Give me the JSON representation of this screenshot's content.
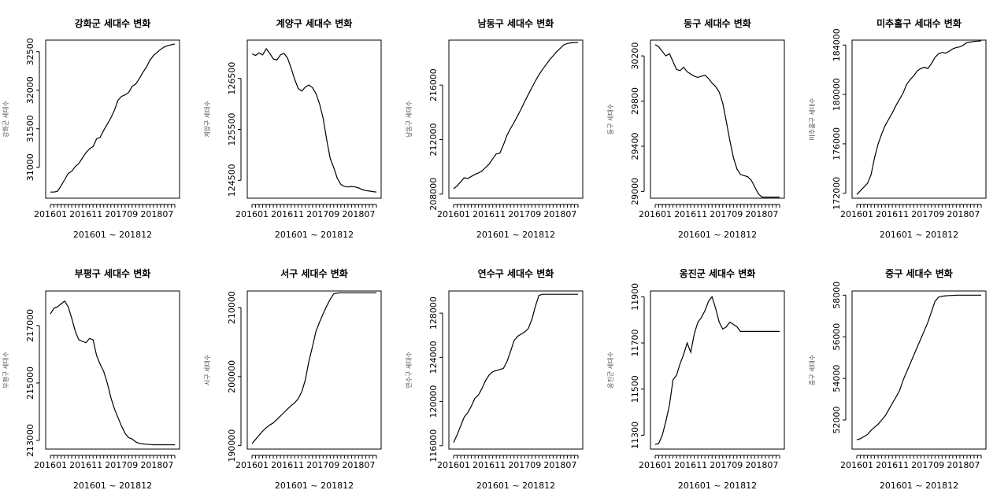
{
  "chart_data": [
    {
      "type": "line",
      "title": "강화군 세대수 변화",
      "xlabel": "201601 ~ 201812",
      "ylabel": "강화군 세대수",
      "ylim": [
        30600,
        32650
      ],
      "yticks": [
        31000,
        31500,
        32000,
        32500
      ],
      "xtick_labels": [
        {
          "index": 0,
          "label": "201601"
        },
        {
          "index": 10,
          "label": "201611"
        },
        {
          "index": 20,
          "label": "201709"
        },
        {
          "index": 30,
          "label": "201807"
        }
      ],
      "x_count": 36,
      "values": [
        30680,
        30680,
        30690,
        30760,
        30840,
        30920,
        30950,
        31010,
        31050,
        31120,
        31190,
        31240,
        31270,
        31370,
        31390,
        31480,
        31560,
        31640,
        31740,
        31870,
        31920,
        31940,
        31970,
        32050,
        32080,
        32150,
        32230,
        32300,
        32390,
        32450,
        32490,
        32530,
        32560,
        32580,
        32590,
        32600
      ]
    },
    {
      "type": "line",
      "title": "계양구 세대수 변화",
      "xlabel": "201601 ~ 201812",
      "ylabel": "계양구 세대수",
      "ylim": [
        124150,
        127250
      ],
      "yticks": [
        124500,
        125500,
        126500
      ],
      "xtick_labels": [
        {
          "index": 0,
          "label": "201601"
        },
        {
          "index": 10,
          "label": "201611"
        },
        {
          "index": 20,
          "label": "201709"
        },
        {
          "index": 30,
          "label": "201807"
        }
      ],
      "x_count": 36,
      "values": [
        126980,
        126950,
        127000,
        126960,
        127080,
        126990,
        126880,
        126860,
        126960,
        126990,
        126900,
        126700,
        126480,
        126300,
        126250,
        126330,
        126370,
        126320,
        126200,
        126000,
        125720,
        125300,
        124930,
        124750,
        124540,
        124420,
        124380,
        124370,
        124380,
        124370,
        124350,
        124320,
        124300,
        124290,
        124280,
        124270
      ]
    },
    {
      "type": "line",
      "title": "남동구 세대수 변화",
      "xlabel": "201601 ~ 201812",
      "ylabel": "남동구 세대수",
      "ylim": [
        207700,
        219300
      ],
      "yticks": [
        208000,
        212000,
        216000
      ],
      "xtick_labels": [
        {
          "index": 0,
          "label": "201601"
        },
        {
          "index": 10,
          "label": "201611"
        },
        {
          "index": 20,
          "label": "201709"
        },
        {
          "index": 30,
          "label": "201807"
        }
      ],
      "x_count": 36,
      "values": [
        208400,
        208600,
        208900,
        209200,
        209150,
        209300,
        209450,
        209550,
        209700,
        209950,
        210200,
        210600,
        210950,
        211000,
        211600,
        212300,
        212800,
        213250,
        213750,
        214250,
        214800,
        215300,
        215800,
        216300,
        216750,
        217150,
        217500,
        217850,
        218150,
        218450,
        218700,
        218950,
        219050,
        219100,
        219120,
        219130
      ]
    },
    {
      "type": "line",
      "title": "동구 세대수 변화",
      "xlabel": "201601 ~ 201812",
      "ylabel": "동구 세대수",
      "ylim": [
        28940,
        30340
      ],
      "yticks": [
        29000,
        29400,
        29800,
        30200
      ],
      "xtick_labels": [
        {
          "index": 0,
          "label": "201601"
        },
        {
          "index": 10,
          "label": "201611"
        },
        {
          "index": 20,
          "label": "201709"
        },
        {
          "index": 30,
          "label": "201807"
        }
      ],
      "x_count": 36,
      "values": [
        30300,
        30280,
        30240,
        30200,
        30220,
        30150,
        30080,
        30070,
        30100,
        30060,
        30040,
        30020,
        30010,
        30020,
        30030,
        30000,
        29960,
        29930,
        29880,
        29780,
        29620,
        29450,
        29300,
        29200,
        29150,
        29140,
        29130,
        29100,
        29040,
        28980,
        28950,
        28950,
        28950,
        28950,
        28950,
        28950
      ]
    },
    {
      "type": "line",
      "title": "미추홀구 세대수 변화",
      "xlabel": "201601 ~ 201812",
      "ylabel": "미추홀구 세대수",
      "ylim": [
        171600,
        184400
      ],
      "yticks": [
        172000,
        176000,
        180000,
        184000
      ],
      "xtick_labels": [
        {
          "index": 0,
          "label": "201601"
        },
        {
          "index": 10,
          "label": "201611"
        },
        {
          "index": 20,
          "label": "201709"
        },
        {
          "index": 30,
          "label": "201807"
        }
      ],
      "x_count": 36,
      "values": [
        171900,
        172200,
        172500,
        172800,
        173500,
        174900,
        176000,
        176800,
        177500,
        178000,
        178500,
        179100,
        179600,
        180100,
        180800,
        181200,
        181500,
        181900,
        182100,
        182200,
        182100,
        182500,
        183000,
        183300,
        183400,
        183350,
        183500,
        183700,
        183800,
        183850,
        184000,
        184200,
        184250,
        184300,
        184320,
        184340
      ]
    },
    {
      "type": "line",
      "title": "부평구 세대수 변화",
      "xlabel": "201601 ~ 201812",
      "ylabel": "부평구 세대수",
      "ylim": [
        212700,
        218200
      ],
      "yticks": [
        213000,
        215000,
        217000
      ],
      "xtick_labels": [
        {
          "index": 0,
          "label": "201601"
        },
        {
          "index": 10,
          "label": "201611"
        },
        {
          "index": 20,
          "label": "201709"
        },
        {
          "index": 30,
          "label": "201807"
        }
      ],
      "x_count": 36,
      "values": [
        217400,
        217600,
        217650,
        217750,
        217850,
        217650,
        217250,
        216800,
        216500,
        216450,
        216400,
        216550,
        216500,
        215950,
        215650,
        215400,
        215000,
        214500,
        214100,
        213800,
        213500,
        213250,
        213100,
        213050,
        212950,
        212900,
        212880,
        212870,
        212860,
        212850,
        212850,
        212850,
        212850,
        212850,
        212850,
        212850
      ]
    },
    {
      "type": "line",
      "title": "서구 세대수 변화",
      "xlabel": "201601 ~ 201812",
      "ylabel": "서구 세대수",
      "ylim": [
        189500,
        212400
      ],
      "yticks": [
        190000,
        200000,
        210000
      ],
      "xtick_labels": [
        {
          "index": 0,
          "label": "201601"
        },
        {
          "index": 10,
          "label": "201611"
        },
        {
          "index": 20,
          "label": "201709"
        },
        {
          "index": 30,
          "label": "201807"
        }
      ],
      "x_count": 36,
      "values": [
        190300,
        190900,
        191500,
        192100,
        192600,
        193000,
        193300,
        193800,
        194300,
        194800,
        195300,
        195800,
        196200,
        196800,
        197800,
        199500,
        202200,
        204300,
        206600,
        207900,
        209100,
        210200,
        211200,
        212000,
        212100,
        212150,
        212150,
        212150,
        212150,
        212150,
        212150,
        212150,
        212150,
        212150,
        212150,
        212150
      ]
    },
    {
      "type": "line",
      "title": "연수구 세대수 변화",
      "xlabel": "201601 ~ 201812",
      "ylabel": "연수구 세대수",
      "ylim": [
        115700,
        130000
      ],
      "yticks": [
        116000,
        120000,
        124000,
        128000
      ],
      "xtick_labels": [
        {
          "index": 0,
          "label": "201601"
        },
        {
          "index": 10,
          "label": "201611"
        },
        {
          "index": 20,
          "label": "201709"
        },
        {
          "index": 30,
          "label": "201807"
        }
      ],
      "x_count": 36,
      "values": [
        116300,
        117000,
        117800,
        118600,
        119000,
        119600,
        120300,
        120600,
        121200,
        121900,
        122400,
        122700,
        122800,
        122900,
        123000,
        123600,
        124500,
        125500,
        125900,
        126100,
        126300,
        126600,
        127400,
        128600,
        129600,
        129700,
        129700,
        129700,
        129700,
        129700,
        129700,
        129700,
        129700,
        129700,
        129700,
        129700
      ]
    },
    {
      "type": "line",
      "title": "옹진군 세대수 변화",
      "xlabel": "201601 ~ 201812",
      "ylabel": "옹진군 세대수",
      "ylim": [
        11240,
        11925
      ],
      "yticks": [
        11300,
        11500,
        11700,
        11900
      ],
      "xtick_labels": [
        {
          "index": 0,
          "label": "201601"
        },
        {
          "index": 10,
          "label": "201611"
        },
        {
          "index": 20,
          "label": "201709"
        },
        {
          "index": 30,
          "label": "201807"
        }
      ],
      "x_count": 36,
      "values": [
        11260,
        11265,
        11300,
        11360,
        11430,
        11540,
        11560,
        11610,
        11650,
        11700,
        11660,
        11740,
        11790,
        11810,
        11840,
        11880,
        11900,
        11850,
        11790,
        11760,
        11770,
        11790,
        11780,
        11770,
        11750,
        11750,
        11750,
        11750,
        11750,
        11750,
        11750,
        11750,
        11750,
        11750,
        11750,
        11750
      ]
    },
    {
      "type": "line",
      "title": "중구 세대수 변화",
      "xlabel": "201601 ~ 201812",
      "ylabel": "중구 세대수",
      "ylim": [
        50600,
        58200
      ],
      "yticks": [
        52000,
        54000,
        56000,
        58000
      ],
      "xtick_labels": [
        {
          "index": 0,
          "label": "201601"
        },
        {
          "index": 10,
          "label": "201611"
        },
        {
          "index": 20,
          "label": "201709"
        },
        {
          "index": 30,
          "label": "201807"
        }
      ],
      "x_count": 36,
      "values": [
        51050,
        51100,
        51200,
        51300,
        51500,
        51650,
        51800,
        52000,
        52200,
        52500,
        52800,
        53100,
        53400,
        53900,
        54300,
        54700,
        55100,
        55500,
        55900,
        56300,
        56700,
        57200,
        57700,
        57900,
        57950,
        57970,
        57980,
        57990,
        58000,
        58000,
        58000,
        58000,
        58000,
        58000,
        58000,
        58000
      ]
    }
  ]
}
